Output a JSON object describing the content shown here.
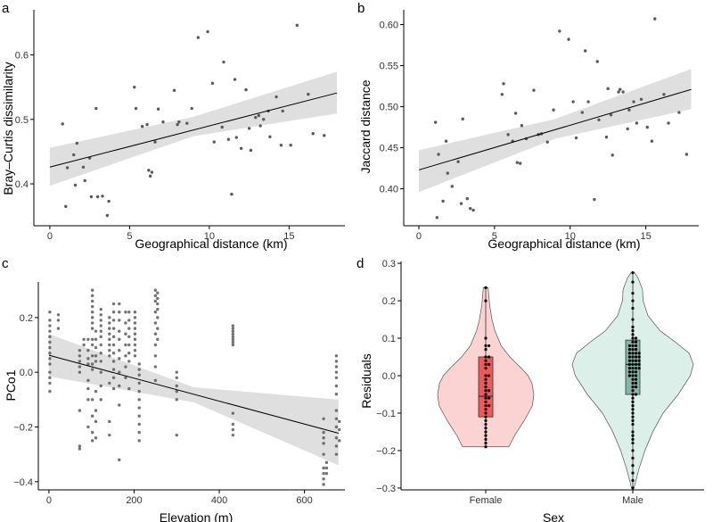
{
  "colors": {
    "point": "#5a5a5a",
    "band": "#d9d9d9",
    "line": "#000000",
    "axis": "#000000",
    "female_violin": "#fbd3d3",
    "female_box": "#ee5a5a",
    "male_violin": "#dcefe9",
    "male_box": "#7fb8a8",
    "dot": "#000000"
  },
  "chart_data": [
    {
      "panel": "a",
      "type": "scatter",
      "xlabel": "Geographical distance (km)",
      "ylabel": "Bray–Curtis dissimilarity",
      "xlim": [
        -1.0,
        18.5
      ],
      "ylim": [
        0.335,
        0.67
      ],
      "xticks": [
        0,
        5,
        10,
        15
      ],
      "yticks": [
        0.4,
        0.5,
        0.6
      ],
      "xtick_labels": [
        "0",
        "5",
        "10",
        "15"
      ],
      "ytick_labels": [
        "0.4",
        "0.5",
        "0.6"
      ],
      "fit": {
        "x": [
          0,
          18
        ],
        "y": [
          0.426,
          0.541
        ]
      },
      "band": {
        "x": [
          0,
          9,
          18
        ],
        "lower": [
          0.397,
          0.474,
          0.509
        ],
        "upper": [
          0.456,
          0.504,
          0.574
        ]
      },
      "points": [
        [
          0.8,
          0.493
        ],
        [
          1.0,
          0.365
        ],
        [
          1.1,
          0.425
        ],
        [
          1.5,
          0.445
        ],
        [
          1.6,
          0.398
        ],
        [
          1.7,
          0.463
        ],
        [
          2.1,
          0.426
        ],
        [
          2.2,
          0.405
        ],
        [
          2.5,
          0.44
        ],
        [
          2.6,
          0.38
        ],
        [
          2.9,
          0.517
        ],
        [
          3.0,
          0.38
        ],
        [
          3.3,
          0.381
        ],
        [
          3.6,
          0.351
        ],
        [
          3.7,
          0.373
        ],
        [
          5.3,
          0.55
        ],
        [
          5.4,
          0.517
        ],
        [
          5.8,
          0.489
        ],
        [
          6.1,
          0.492
        ],
        [
          6.2,
          0.421
        ],
        [
          6.3,
          0.412
        ],
        [
          6.4,
          0.418
        ],
        [
          6.6,
          0.465
        ],
        [
          6.8,
          0.516
        ],
        [
          7.1,
          0.496
        ],
        [
          7.8,
          0.545
        ],
        [
          8.0,
          0.492
        ],
        [
          8.1,
          0.496
        ],
        [
          8.6,
          0.494
        ],
        [
          8.9,
          0.517
        ],
        [
          9.3,
          0.627
        ],
        [
          9.9,
          0.636
        ],
        [
          10.2,
          0.556
        ],
        [
          10.3,
          0.465
        ],
        [
          10.8,
          0.488
        ],
        [
          10.9,
          0.589
        ],
        [
          11.2,
          0.469
        ],
        [
          11.4,
          0.384
        ],
        [
          11.6,
          0.562
        ],
        [
          11.7,
          0.472
        ],
        [
          12.0,
          0.455
        ],
        [
          12.3,
          0.546
        ],
        [
          12.5,
          0.486
        ],
        [
          12.6,
          0.452
        ],
        [
          12.9,
          0.503
        ],
        [
          13.1,
          0.506
        ],
        [
          13.2,
          0.49
        ],
        [
          13.4,
          0.5
        ],
        [
          13.7,
          0.513
        ],
        [
          13.8,
          0.473
        ],
        [
          14.2,
          0.535
        ],
        [
          14.5,
          0.46
        ],
        [
          14.6,
          0.513
        ],
        [
          15.1,
          0.46
        ],
        [
          15.5,
          0.646
        ],
        [
          16.2,
          0.539
        ],
        [
          16.5,
          0.478
        ],
        [
          17.2,
          0.475
        ]
      ]
    },
    {
      "panel": "b",
      "type": "scatter",
      "xlabel": "Geographical distance (km)",
      "ylabel": "Jaccard distance",
      "xlim": [
        -1.0,
        18.5
      ],
      "ylim": [
        0.355,
        0.618
      ],
      "xticks": [
        0,
        5,
        10,
        15
      ],
      "yticks": [
        0.4,
        0.45,
        0.5,
        0.55,
        0.6
      ],
      "xtick_labels": [
        "0",
        "5",
        "10",
        "15"
      ],
      "ytick_labels": [
        "0.40",
        "0.45",
        "0.50",
        "0.55",
        "0.60"
      ],
      "fit": {
        "x": [
          0,
          18
        ],
        "y": [
          0.423,
          0.521
        ]
      },
      "band": {
        "x": [
          0,
          9,
          18
        ],
        "lower": [
          0.396,
          0.461,
          0.497
        ],
        "upper": [
          0.447,
          0.485,
          0.546
        ]
      },
      "points": [
        [
          1.1,
          0.481
        ],
        [
          1.2,
          0.365
        ],
        [
          1.3,
          0.442
        ],
        [
          1.6,
          0.385
        ],
        [
          1.8,
          0.458
        ],
        [
          1.9,
          0.419
        ],
        [
          2.2,
          0.403
        ],
        [
          2.6,
          0.433
        ],
        [
          2.8,
          0.382
        ],
        [
          2.9,
          0.485
        ],
        [
          3.2,
          0.388
        ],
        [
          3.4,
          0.376
        ],
        [
          3.6,
          0.374
        ],
        [
          5.5,
          0.515
        ],
        [
          5.6,
          0.528
        ],
        [
          5.9,
          0.466
        ],
        [
          6.2,
          0.458
        ],
        [
          6.4,
          0.492
        ],
        [
          6.5,
          0.432
        ],
        [
          6.7,
          0.431
        ],
        [
          6.8,
          0.477
        ],
        [
          7.1,
          0.461
        ],
        [
          7.6,
          0.52
        ],
        [
          7.9,
          0.466
        ],
        [
          8.1,
          0.467
        ],
        [
          8.5,
          0.457
        ],
        [
          8.9,
          0.496
        ],
        [
          9.3,
          0.592
        ],
        [
          9.9,
          0.582
        ],
        [
          10.2,
          0.506
        ],
        [
          10.4,
          0.462
        ],
        [
          10.8,
          0.493
        ],
        [
          11.0,
          0.568
        ],
        [
          11.2,
          0.506
        ],
        [
          11.6,
          0.387
        ],
        [
          11.8,
          0.555
        ],
        [
          11.9,
          0.484
        ],
        [
          12.4,
          0.463
        ],
        [
          12.5,
          0.522
        ],
        [
          12.7,
          0.49
        ],
        [
          12.8,
          0.441
        ],
        [
          13.2,
          0.518
        ],
        [
          13.3,
          0.521
        ],
        [
          13.5,
          0.518
        ],
        [
          13.8,
          0.473
        ],
        [
          13.9,
          0.496
        ],
        [
          14.2,
          0.506
        ],
        [
          14.4,
          0.48
        ],
        [
          14.7,
          0.509
        ],
        [
          15.1,
          0.475
        ],
        [
          15.4,
          0.458
        ],
        [
          15.6,
          0.607
        ],
        [
          16.2,
          0.515
        ],
        [
          16.5,
          0.48
        ],
        [
          17.2,
          0.493
        ],
        [
          17.7,
          0.442
        ]
      ]
    },
    {
      "panel": "c",
      "type": "scatter",
      "xlabel": "Elevation (m)",
      "ylabel": "PCo1",
      "xlim": [
        -25,
        695
      ],
      "ylim": [
        -0.43,
        0.33
      ],
      "xticks": [
        0,
        200,
        400,
        600
      ],
      "yticks": [
        -0.4,
        -0.2,
        0.0,
        0.2
      ],
      "xtick_labels": [
        "0",
        "200",
        "400",
        "600"
      ],
      "ytick_labels": [
        "−0.4",
        "−0.2",
        "0.0",
        "0.2"
      ],
      "fit": {
        "x": [
          0,
          680
        ],
        "y": [
          0.062,
          -0.223
        ]
      },
      "band": {
        "x": [
          0,
          340,
          680
        ],
        "lower": [
          -0.015,
          -0.11,
          -0.34
        ],
        "upper": [
          0.14,
          -0.055,
          -0.1
        ]
      },
      "columns": [
        {
          "x": 2,
          "y": [
            0.22,
            0.19,
            0.17,
            0.15,
            0.13,
            0.11,
            0.09,
            0.07,
            0.05,
            0.03,
            0.0,
            -0.02,
            -0.04,
            -0.07
          ]
        },
        {
          "x": 22,
          "y": [
            0.21,
            0.19,
            0.16
          ]
        },
        {
          "x": 72,
          "y": [
            0.08,
            0.06,
            0.04,
            0.02,
            0.0,
            -0.14,
            -0.27,
            -0.28
          ]
        },
        {
          "x": 82,
          "y": [
            0.12,
            0.1
          ]
        },
        {
          "x": 92,
          "y": [
            0.12,
            0.08,
            0.05,
            0.03,
            -0.03,
            -0.06,
            -0.1,
            -0.2
          ]
        },
        {
          "x": 102,
          "y": [
            0.3,
            0.28,
            0.26,
            0.24,
            0.22,
            0.2,
            0.18,
            0.16,
            0.12,
            0.1,
            0.06,
            0.03,
            0.01,
            -0.1,
            -0.16,
            -0.22,
            -0.25
          ]
        },
        {
          "x": 110,
          "y": [
            0.15,
            0.12,
            0.09,
            0.06,
            0.04,
            -0.07,
            -0.14,
            -0.18,
            -0.24
          ]
        },
        {
          "x": 122,
          "y": [
            0.23,
            0.21,
            0.19,
            0.17,
            0.15,
            0.13,
            0.1,
            0.07,
            0.04,
            0.0,
            -0.05,
            -0.1
          ]
        },
        {
          "x": 142,
          "y": [
            0.2,
            0.18,
            0.16,
            0.14,
            0.12,
            0.1,
            0.08,
            0.06,
            -0.04,
            -0.18,
            -0.23
          ]
        },
        {
          "x": 152,
          "y": [
            0.25,
            0.22,
            0.19,
            0.16,
            0.13,
            0.1,
            0.07,
            0.04,
            0.01,
            -0.02,
            -0.06
          ]
        },
        {
          "x": 165,
          "y": [
            0.25,
            0.22,
            0.19,
            0.15,
            0.12,
            0.08,
            0.05,
            0.0,
            -0.05,
            -0.12,
            -0.32
          ]
        },
        {
          "x": 180,
          "y": [
            0.22,
            0.18,
            0.14,
            0.1,
            0.06,
            0.02,
            -0.02
          ]
        },
        {
          "x": 188,
          "y": [
            0.22,
            0.19,
            0.16,
            0.13,
            0.1,
            0.07,
            0.04,
            -0.06
          ]
        },
        {
          "x": 202,
          "y": [
            0.22,
            0.2,
            0.18,
            0.16,
            0.14,
            0.12,
            0.1,
            0.08,
            0.06
          ]
        },
        {
          "x": 212,
          "y": [
            0.03,
            0.01,
            -0.01,
            -0.04,
            -0.07,
            -0.1,
            -0.13,
            -0.16,
            -0.19,
            -0.22,
            -0.25
          ]
        },
        {
          "x": 250,
          "y": [
            0.3,
            0.28,
            0.26,
            0.22,
            0.18,
            0.14,
            0.1,
            0.06,
            0.02,
            -0.03
          ]
        },
        {
          "x": 255,
          "y": [
            0.29,
            0.27,
            0.25,
            0.23,
            0.2,
            0.16,
            0.12
          ]
        },
        {
          "x": 300,
          "y": [
            0.0,
            -0.02,
            -0.05,
            -0.07,
            -0.1,
            -0.23
          ]
        },
        {
          "x": 432,
          "y": [
            0.17,
            0.16,
            0.15,
            0.14,
            0.13,
            0.12,
            0.11,
            0.1,
            -0.15,
            -0.19,
            -0.21,
            -0.23
          ]
        },
        {
          "x": 645,
          "y": [
            -0.17,
            -0.22,
            -0.24,
            -0.26,
            -0.3,
            -0.35,
            -0.37,
            -0.39,
            -0.41
          ]
        },
        {
          "x": 652,
          "y": [
            -0.33,
            -0.35,
            -0.37
          ]
        },
        {
          "x": 675,
          "y": [
            0.06,
            0.04,
            0.02,
            0.0,
            -0.02,
            -0.05,
            -0.08,
            -0.14,
            -0.17,
            -0.2,
            -0.24,
            -0.27,
            -0.3
          ]
        },
        {
          "x": 682,
          "y": [
            -0.18,
            -0.21,
            -0.25
          ]
        }
      ]
    },
    {
      "panel": "d",
      "type": "violin",
      "xlabel": "Sex",
      "ylabel": "Residuals",
      "ylim": [
        -0.305,
        0.305
      ],
      "yticks": [
        -0.3,
        -0.2,
        -0.1,
        0.0,
        0.1,
        0.2,
        0.3
      ],
      "ytick_labels": [
        "−0.3",
        "−0.2",
        "−0.1",
        "0.0",
        "0.1",
        "0.2",
        "0.3"
      ],
      "categories": [
        "Female",
        "Male"
      ],
      "groups": [
        {
          "name": "Female",
          "ymin": -0.19,
          "ymax": 0.235,
          "density": [
            [
              -0.19,
              0.48
            ],
            [
              -0.16,
              0.6
            ],
            [
              -0.12,
              0.8
            ],
            [
              -0.08,
              0.97
            ],
            [
              -0.05,
              1.0
            ],
            [
              -0.02,
              0.96
            ],
            [
              0.0,
              0.88
            ],
            [
              0.02,
              0.74
            ],
            [
              0.05,
              0.5
            ],
            [
              0.08,
              0.32
            ],
            [
              0.12,
              0.19
            ],
            [
              0.15,
              0.13
            ],
            [
              0.19,
              0.08
            ],
            [
              0.235,
              0.05
            ]
          ],
          "box": {
            "q1": -0.11,
            "median": -0.055,
            "q3": 0.05,
            "whisker_low": -0.19,
            "whisker_high": 0.235
          },
          "points": [
            0.235,
            0.2,
            0.1,
            0.08,
            0.08,
            0.07,
            0.05,
            0.05,
            0.04,
            0.03,
            0.03,
            0.02,
            0.0,
            0.0,
            -0.01,
            -0.02,
            -0.03,
            -0.04,
            -0.04,
            -0.05,
            -0.06,
            -0.06,
            -0.07,
            -0.08,
            -0.08,
            -0.09,
            -0.1,
            -0.11,
            -0.12,
            -0.13,
            -0.14,
            -0.15,
            -0.16,
            -0.17,
            -0.18,
            -0.19
          ]
        },
        {
          "name": "Male",
          "ymin": -0.3,
          "ymax": 0.275,
          "density": [
            [
              -0.3,
              0.02
            ],
            [
              -0.25,
              0.1
            ],
            [
              -0.2,
              0.2
            ],
            [
              -0.15,
              0.33
            ],
            [
              -0.1,
              0.5
            ],
            [
              -0.05,
              0.75
            ],
            [
              0.0,
              0.95
            ],
            [
              0.03,
              1.0
            ],
            [
              0.06,
              0.93
            ],
            [
              0.09,
              0.7
            ],
            [
              0.12,
              0.45
            ],
            [
              0.16,
              0.25
            ],
            [
              0.2,
              0.17
            ],
            [
              0.23,
              0.16
            ],
            [
              0.26,
              0.09
            ],
            [
              0.275,
              0.03
            ]
          ],
          "box": {
            "q1": -0.05,
            "median": 0.03,
            "q3": 0.095,
            "whisker_low": -0.3,
            "whisker_high": 0.275
          },
          "points": [
            0.275,
            0.25,
            0.22,
            0.2,
            0.18,
            0.15,
            0.13,
            0.12,
            0.11,
            0.1,
            0.1,
            0.09,
            0.09,
            0.08,
            0.08,
            0.08,
            0.07,
            0.07,
            0.07,
            0.06,
            0.06,
            0.06,
            0.06,
            0.05,
            0.05,
            0.05,
            0.05,
            0.04,
            0.04,
            0.04,
            0.04,
            0.03,
            0.03,
            0.03,
            0.03,
            0.02,
            0.02,
            0.02,
            0.02,
            0.01,
            0.01,
            0.01,
            0.0,
            0.0,
            0.0,
            -0.01,
            -0.01,
            -0.02,
            -0.02,
            -0.03,
            -0.03,
            -0.04,
            -0.05,
            -0.05,
            -0.06,
            -0.07,
            -0.08,
            -0.09,
            -0.1,
            -0.11,
            -0.12,
            -0.13,
            -0.15,
            -0.16,
            -0.17,
            -0.18,
            -0.2,
            -0.22,
            -0.24,
            -0.26,
            -0.28,
            -0.3
          ]
        }
      ]
    }
  ]
}
